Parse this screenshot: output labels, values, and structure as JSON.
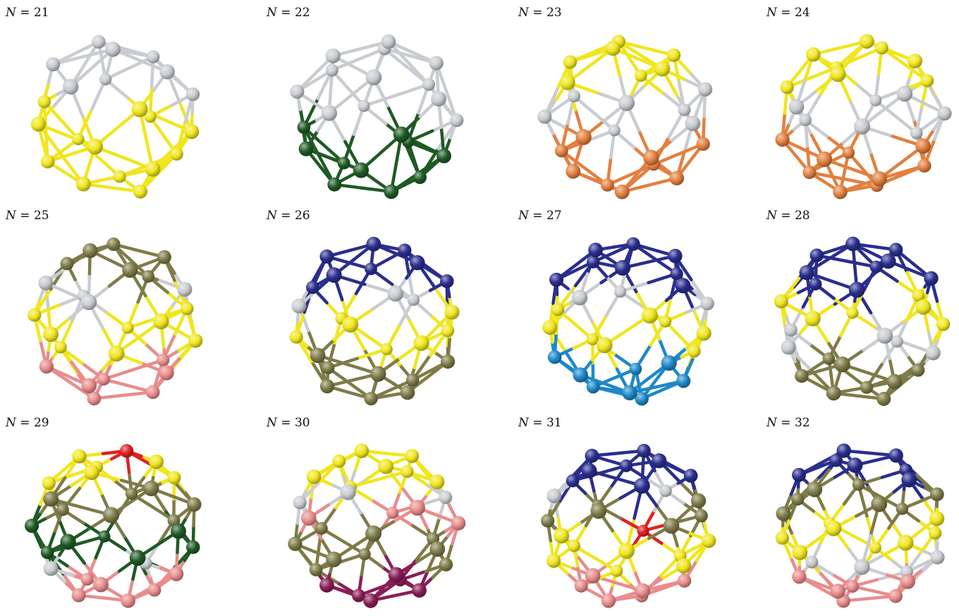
{
  "figure": {
    "panels": [
      {
        "n_var": "N",
        "n_val": "21",
        "groups": [
          {
            "color": "#f0e61e",
            "count": 13
          },
          {
            "color": "#c9ccd0",
            "count": 8
          }
        ]
      },
      {
        "n_var": "N",
        "n_val": "22",
        "groups": [
          {
            "color": "#1f5a25",
            "count": 10
          },
          {
            "color": "#c9ccd0",
            "count": 12
          }
        ]
      },
      {
        "n_var": "N",
        "n_val": "23",
        "groups": [
          {
            "color": "#e2803f",
            "count": 9
          },
          {
            "color": "#c9ccd0",
            "count": 7
          },
          {
            "color": "#f0e61e",
            "count": 7
          }
        ]
      },
      {
        "n_var": "N",
        "n_val": "24",
        "groups": [
          {
            "color": "#e2803f",
            "count": 9
          },
          {
            "color": "#c9ccd0",
            "count": 7
          },
          {
            "color": "#f0e61e",
            "count": 8
          }
        ]
      },
      {
        "n_var": "N",
        "n_val": "25",
        "groups": [
          {
            "color": "#e98c8c",
            "count": 7
          },
          {
            "color": "#f0e61e",
            "count": 8
          },
          {
            "color": "#c9ccd0",
            "count": 4
          },
          {
            "color": "#7e7b48",
            "count": 6
          }
        ]
      },
      {
        "n_var": "N",
        "n_val": "26",
        "groups": [
          {
            "color": "#7e7b48",
            "count": 8
          },
          {
            "color": "#f0e61e",
            "count": 7
          },
          {
            "color": "#c9ccd0",
            "count": 3
          },
          {
            "color": "#2a2e8e",
            "count": 8
          }
        ]
      },
      {
        "n_var": "N",
        "n_val": "27",
        "groups": [
          {
            "color": "#1e88c8",
            "count": 8
          },
          {
            "color": "#f0e61e",
            "count": 8
          },
          {
            "color": "#c9ccd0",
            "count": 3
          },
          {
            "color": "#2a2e8e",
            "count": 8
          }
        ]
      },
      {
        "n_var": "N",
        "n_val": "28",
        "groups": [
          {
            "color": "#7e7b48",
            "count": 8
          },
          {
            "color": "#c9ccd0",
            "count": 5
          },
          {
            "color": "#f0e61e",
            "count": 6
          },
          {
            "color": "#2a2e8e",
            "count": 9
          }
        ]
      },
      {
        "n_var": "N",
        "n_val": "29",
        "groups": [
          {
            "color": "#e98c8c",
            "count": 6
          },
          {
            "color": "#c9ccd0",
            "count": 2
          },
          {
            "color": "#1f5a25",
            "count": 7
          },
          {
            "color": "#7e7b48",
            "count": 7
          },
          {
            "color": "#f0e61e",
            "count": 6
          },
          {
            "color": "#e02020",
            "count": 1
          }
        ]
      },
      {
        "n_var": "N",
        "n_val": "30",
        "groups": [
          {
            "color": "#8a1e55",
            "count": 6
          },
          {
            "color": "#7e7b48",
            "count": 9
          },
          {
            "color": "#e98c8c",
            "count": 4
          },
          {
            "color": "#c9ccd0",
            "count": 3
          },
          {
            "color": "#f0e61e",
            "count": 8
          }
        ]
      },
      {
        "n_var": "N",
        "n_val": "31",
        "groups": [
          {
            "color": "#e98c8c",
            "count": 6
          },
          {
            "color": "#f0e61e",
            "count": 8
          },
          {
            "color": "#e02020",
            "count": 1
          },
          {
            "color": "#7e7b48",
            "count": 6
          },
          {
            "color": "#c9ccd0",
            "count": 2
          },
          {
            "color": "#2a2e8e",
            "count": 8
          }
        ]
      },
      {
        "n_var": "N",
        "n_val": "32",
        "groups": [
          {
            "color": "#e98c8c",
            "count": 6
          },
          {
            "color": "#c9ccd0",
            "count": 4
          },
          {
            "color": "#f0e61e",
            "count": 8
          },
          {
            "color": "#7e7b48",
            "count": 7
          },
          {
            "color": "#2a2e8e",
            "count": 7
          }
        ]
      }
    ]
  }
}
